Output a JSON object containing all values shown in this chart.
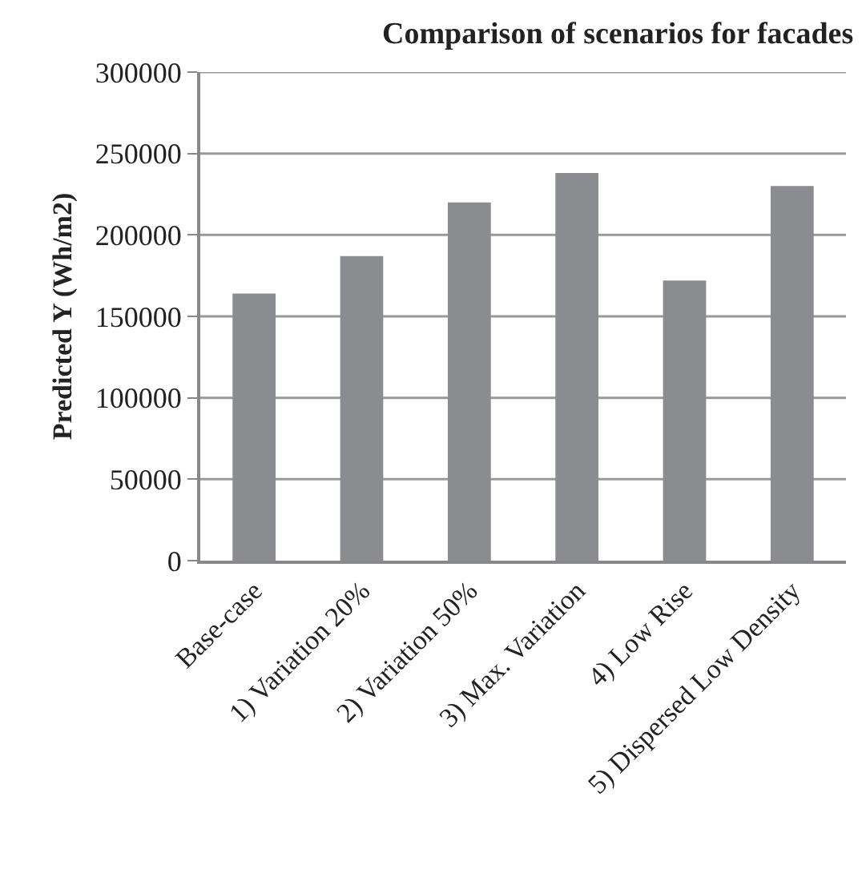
{
  "chart_data": {
    "type": "bar",
    "title": "Comparison of scenarios for facades",
    "ylabel": "Predicted Y (Wh/m2)",
    "categories": [
      "Base-case",
      "1) Variation 20%",
      "2) Variation 50%",
      "3) Max. Variation",
      "4) Low Rise",
      "5) Dispersed Low Density"
    ],
    "values": [
      164000,
      187000,
      220000,
      238000,
      172000,
      230000
    ],
    "color": "#8b8c8f",
    "ylim": [
      0,
      300000
    ],
    "yticks": [
      0,
      50000,
      100000,
      150000,
      200000,
      250000,
      300000
    ],
    "grid": "y"
  }
}
